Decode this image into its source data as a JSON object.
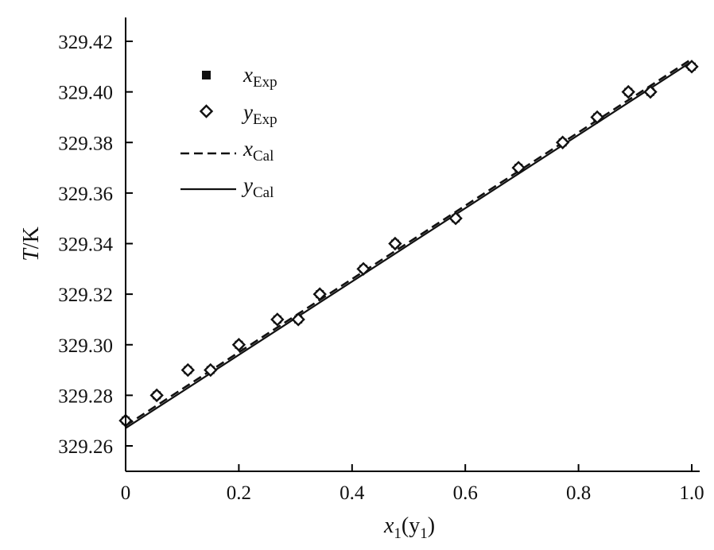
{
  "chart_data": {
    "type": "scatter",
    "title": "",
    "xlabel": {
      "main": "x",
      "sub1": "1",
      "open": "(y",
      "sub2": "1",
      "close": ")"
    },
    "ylabel": {
      "main": "T",
      "unit": "/K"
    },
    "xlim": [
      0,
      1.0
    ],
    "ylim": [
      329.25,
      329.425
    ],
    "xticks": [
      0,
      0.2,
      0.4,
      0.6,
      0.8,
      1.0
    ],
    "xtick_labels": [
      "0",
      "0.2",
      "0.4",
      "0.6",
      "0.8",
      "1.0"
    ],
    "yticks": [
      329.26,
      329.28,
      329.3,
      329.32,
      329.34,
      329.36,
      329.38,
      329.4,
      329.42
    ],
    "ytick_labels": [
      "329.26",
      "329.28",
      "329.30",
      "329.32",
      "329.34",
      "329.36",
      "329.38",
      "329.40",
      "329.42"
    ],
    "grid": false,
    "legend_position": "top-left",
    "series": [
      {
        "name": "x_Exp",
        "label_main": "x",
        "label_sub": "Exp",
        "kind": "marker",
        "marker": "filled-square",
        "x": [
          0,
          0.055,
          0.11,
          0.15,
          0.2,
          0.268,
          0.305,
          0.343,
          0.42,
          0.476,
          0.583,
          0.694,
          0.772,
          0.833,
          0.888,
          0.927,
          1.0
        ],
        "y": [
          329.27,
          329.28,
          329.29,
          329.29,
          329.3,
          329.31,
          329.31,
          329.32,
          329.33,
          329.34,
          329.35,
          329.37,
          329.38,
          329.39,
          329.4,
          329.4,
          329.41
        ]
      },
      {
        "name": "y_Exp",
        "label_main": "y",
        "label_sub": "Exp",
        "kind": "marker",
        "marker": "open-diamond",
        "x": [
          0,
          0.055,
          0.11,
          0.15,
          0.2,
          0.268,
          0.305,
          0.343,
          0.42,
          0.476,
          0.583,
          0.694,
          0.772,
          0.833,
          0.888,
          0.927,
          1.0
        ],
        "y": [
          329.27,
          329.28,
          329.29,
          329.29,
          329.3,
          329.31,
          329.31,
          329.32,
          329.33,
          329.34,
          329.35,
          329.37,
          329.38,
          329.39,
          329.4,
          329.4,
          329.41
        ]
      },
      {
        "name": "x_Cal",
        "label_main": "x",
        "label_sub": "Cal",
        "kind": "line",
        "style": "dashed",
        "x": [
          0,
          1.0
        ],
        "y": [
          329.268,
          329.413
        ]
      },
      {
        "name": "y_Cal",
        "label_main": "y",
        "label_sub": "Cal",
        "kind": "line",
        "style": "solid",
        "x": [
          0,
          1.0
        ],
        "y": [
          329.267,
          329.412
        ]
      }
    ]
  }
}
